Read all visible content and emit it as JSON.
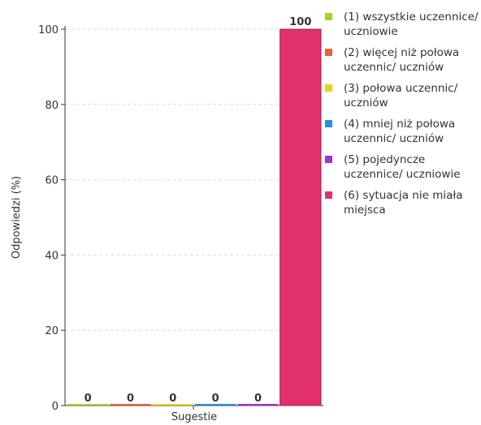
{
  "chart_data": {
    "type": "bar",
    "ylabel": "Odpowiedzi (%)",
    "categories": [
      "Sugestie"
    ],
    "series": [
      {
        "name": "(1) wszystkie uczennice/ uczniowie",
        "color": "#a8d02a",
        "values": [
          0
        ]
      },
      {
        "name": "(2) więcej niż połowa uczennic/ uczniów",
        "color": "#e8603c",
        "values": [
          0
        ]
      },
      {
        "name": "(3) połowa uczennic/ uczniów",
        "color": "#e6d21e",
        "values": [
          0
        ]
      },
      {
        "name": "(4) mniej niż połowa uczennic/ uczniów",
        "color": "#2b8fd8",
        "values": [
          0
        ]
      },
      {
        "name": "(5) pojedyncze uczennice/ uczniowie",
        "color": "#a52ed8",
        "values": [
          0
        ]
      },
      {
        "name": "(6) sytuacja nie miała miejsca",
        "color": "#e0306e",
        "values": [
          100
        ]
      }
    ],
    "ylim": [
      0,
      100
    ],
    "yticks": [
      0,
      20,
      40,
      60,
      80,
      100
    ],
    "grid": true
  }
}
